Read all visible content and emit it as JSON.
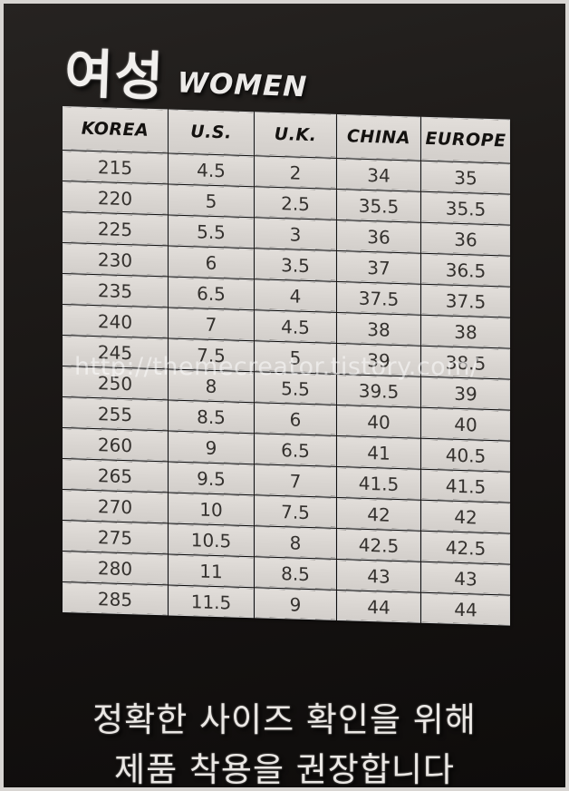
{
  "title": {
    "korean": "여성",
    "english": "WOMEN"
  },
  "table": {
    "columns": [
      "KOREA",
      "U.S.",
      "U.K.",
      "CHINA",
      "EUROPE"
    ],
    "rows": [
      [
        "215",
        "4.5",
        "2",
        "34",
        "35"
      ],
      [
        "220",
        "5",
        "2.5",
        "35.5",
        "35.5"
      ],
      [
        "225",
        "5.5",
        "3",
        "36",
        "36"
      ],
      [
        "230",
        "6",
        "3.5",
        "37",
        "36.5"
      ],
      [
        "235",
        "6.5",
        "4",
        "37.5",
        "37.5"
      ],
      [
        "240",
        "7",
        "4.5",
        "38",
        "38"
      ],
      [
        "245",
        "7.5",
        "5",
        "39",
        "38.5"
      ],
      [
        "250",
        "8",
        "5.5",
        "39.5",
        "39"
      ],
      [
        "255",
        "8.5",
        "6",
        "40",
        "40"
      ],
      [
        "260",
        "9",
        "6.5",
        "41",
        "40.5"
      ],
      [
        "265",
        "9.5",
        "7",
        "41.5",
        "41.5"
      ],
      [
        "270",
        "10",
        "7.5",
        "42",
        "42"
      ],
      [
        "275",
        "10.5",
        "8",
        "42.5",
        "42.5"
      ],
      [
        "280",
        "11",
        "8.5",
        "43",
        "43"
      ],
      [
        "285",
        "11.5",
        "9",
        "44",
        "44"
      ]
    ]
  },
  "watermark": "http://themecreator.tistory.com/",
  "footer": {
    "line1": "정확한 사이즈 확인을 위해",
    "line2": "제품 착용을 권장합니다"
  },
  "colors": {
    "background": "#161312",
    "cell": "#dcd8d4",
    "cell_text": "#34312e",
    "header_text": "#141210",
    "light_text": "#eae7e4"
  }
}
